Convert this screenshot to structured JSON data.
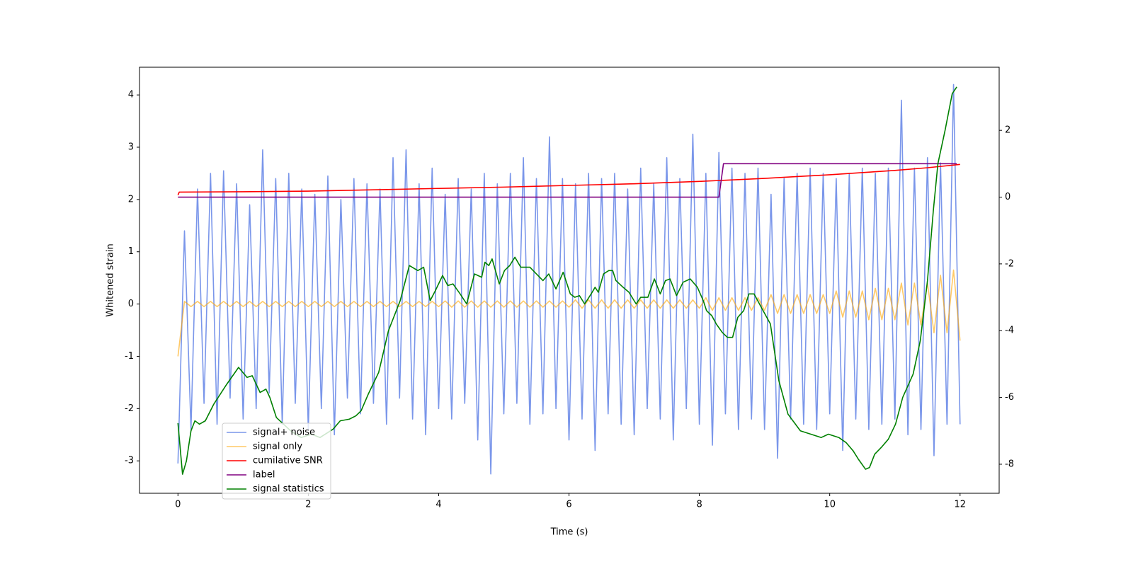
{
  "chart_data": {
    "type": "line",
    "xlabel": "Time (s)",
    "ylabel": "Whitened strain",
    "xlim": [
      -0.59,
      12.6
    ],
    "ylim": [
      -3.62,
      4.53
    ],
    "y2lim": [
      -8.87,
      3.89
    ],
    "xticks": [
      0,
      2,
      4,
      6,
      8,
      10,
      12
    ],
    "yticks": [
      -3,
      -2,
      -1,
      0,
      1,
      2,
      3,
      4
    ],
    "y2ticks": [
      -8,
      -6,
      -4,
      -2,
      0,
      2
    ],
    "legend": "lower left",
    "series": [
      {
        "name": "signal+ noise",
        "color": "#4169e1",
        "x": [
          0,
          0.1,
          0.2,
          0.3,
          0.4,
          0.5,
          0.6,
          0.7,
          0.8,
          0.9,
          1,
          1.1,
          1.2,
          1.3,
          1.4,
          1.5,
          1.6,
          1.7,
          1.8,
          1.9,
          2,
          2.1,
          2.2,
          2.3,
          2.4,
          2.5,
          2.6,
          2.7,
          2.8,
          2.9,
          3,
          3.1,
          3.2,
          3.3,
          3.4,
          3.5,
          3.6,
          3.7,
          3.8,
          3.9,
          4,
          4.1,
          4.2,
          4.3,
          4.4,
          4.5,
          4.6,
          4.7,
          4.8,
          4.9,
          5,
          5.1,
          5.2,
          5.3,
          5.4,
          5.5,
          5.6,
          5.7,
          5.8,
          5.9,
          6,
          6.1,
          6.2,
          6.3,
          6.4,
          6.5,
          6.6,
          6.7,
          6.8,
          6.9,
          7,
          7.1,
          7.2,
          7.3,
          7.4,
          7.5,
          7.6,
          7.7,
          7.8,
          7.9,
          8,
          8.1,
          8.2,
          8.3,
          8.4,
          8.5,
          8.6,
          8.7,
          8.8,
          8.9,
          9,
          9.1,
          9.2,
          9.3,
          9.4,
          9.5,
          9.6,
          9.7,
          9.8,
          9.9,
          10,
          10.1,
          10.2,
          10.3,
          10.4,
          10.5,
          10.6,
          10.7,
          10.8,
          10.9,
          11,
          11.1,
          11.2,
          11.3,
          11.4,
          11.5,
          11.6,
          11.7,
          11.8,
          11.9,
          12
        ],
        "values": [
          -3.05,
          1.4,
          -2.4,
          2.2,
          -1.9,
          2.5,
          -2.3,
          2.55,
          -1.8,
          2.3,
          -2.2,
          1.9,
          -2.0,
          2.95,
          -1.7,
          2.4,
          -2.3,
          2.5,
          -1.9,
          2.2,
          -2.4,
          2.1,
          -2.0,
          2.45,
          -2.5,
          2.0,
          -1.8,
          2.4,
          -2.1,
          2.3,
          -1.9,
          2.2,
          -2.3,
          2.8,
          -1.8,
          2.95,
          -2.2,
          2.3,
          -2.5,
          2.6,
          -2.0,
          2.1,
          -2.2,
          2.4,
          -1.9,
          2.2,
          -2.6,
          2.5,
          -3.25,
          2.3,
          -2.1,
          2.5,
          -1.9,
          2.8,
          -2.3,
          2.4,
          -2.1,
          3.2,
          -2.0,
          2.4,
          -2.6,
          2.3,
          -2.2,
          2.5,
          -2.8,
          2.4,
          -2.1,
          2.5,
          -2.3,
          2.2,
          -2.5,
          2.6,
          -2.0,
          2.3,
          -2.2,
          2.8,
          -2.6,
          2.4,
          -2.0,
          3.25,
          -2.3,
          2.5,
          -2.7,
          2.9,
          -2.1,
          2.6,
          -2.4,
          2.5,
          -2.2,
          2.6,
          -2.4,
          2.1,
          -2.95,
          2.4,
          -2.2,
          2.5,
          -2.3,
          2.6,
          -2.4,
          2.5,
          -2.1,
          2.4,
          -2.8,
          2.5,
          -2.2,
          2.6,
          -2.4,
          2.5,
          -2.3,
          2.6,
          -2.2,
          3.9,
          -2.5,
          2.6,
          -2.4,
          2.8,
          -2.9,
          2.7,
          -2.3,
          4.2,
          -2.3
        ]
      },
      {
        "name": "signal only",
        "color": "#ffa500",
        "x": [
          0,
          0.1,
          0.2,
          0.3,
          0.4,
          0.5,
          0.6,
          0.7,
          0.8,
          0.9,
          1,
          1.1,
          1.2,
          1.3,
          1.4,
          1.5,
          1.6,
          1.7,
          1.8,
          1.9,
          2,
          2.1,
          2.2,
          2.3,
          2.4,
          2.5,
          2.6,
          2.7,
          2.8,
          2.9,
          3,
          3.1,
          3.2,
          3.3,
          3.4,
          3.5,
          3.6,
          3.7,
          3.8,
          3.9,
          4,
          4.1,
          4.2,
          4.3,
          4.4,
          4.5,
          4.6,
          4.7,
          4.8,
          4.9,
          5,
          5.1,
          5.2,
          5.3,
          5.4,
          5.5,
          5.6,
          5.7,
          5.8,
          5.9,
          6,
          6.1,
          6.2,
          6.3,
          6.4,
          6.5,
          6.6,
          6.7,
          6.8,
          6.9,
          7,
          7.1,
          7.2,
          7.3,
          7.4,
          7.5,
          7.6,
          7.7,
          7.8,
          7.9,
          8,
          8.1,
          8.2,
          8.3,
          8.4,
          8.5,
          8.6,
          8.7,
          8.8,
          8.9,
          9,
          9.1,
          9.2,
          9.3,
          9.4,
          9.5,
          9.6,
          9.7,
          9.8,
          9.9,
          10,
          10.1,
          10.2,
          10.3,
          10.4,
          10.5,
          10.6,
          10.7,
          10.8,
          10.9,
          11,
          11.1,
          11.2,
          11.3,
          11.4,
          11.5,
          11.6,
          11.7,
          11.8,
          11.9,
          12
        ],
        "values": [
          -1.0,
          0.05,
          -0.05,
          0.05,
          -0.05,
          0.05,
          -0.05,
          0.05,
          -0.05,
          0.05,
          -0.05,
          0.05,
          -0.05,
          0.05,
          -0.05,
          0.05,
          -0.05,
          0.05,
          -0.05,
          0.05,
          -0.05,
          0.05,
          -0.05,
          0.05,
          -0.05,
          0.05,
          -0.05,
          0.05,
          -0.05,
          0.05,
          -0.05,
          0.05,
          -0.05,
          0.05,
          -0.05,
          0.05,
          -0.05,
          0.05,
          -0.05,
          0.05,
          -0.05,
          0.06,
          -0.06,
          0.06,
          -0.06,
          0.06,
          -0.06,
          0.06,
          -0.06,
          0.06,
          -0.06,
          0.06,
          -0.06,
          0.06,
          -0.06,
          0.06,
          -0.06,
          0.06,
          -0.06,
          0.06,
          -0.06,
          0.08,
          -0.08,
          0.08,
          -0.08,
          0.08,
          -0.08,
          0.08,
          -0.08,
          0.08,
          -0.08,
          0.08,
          -0.08,
          0.08,
          -0.08,
          0.08,
          -0.08,
          0.08,
          -0.08,
          0.08,
          -0.08,
          0.12,
          -0.12,
          0.12,
          -0.12,
          0.12,
          -0.12,
          0.12,
          -0.12,
          0.12,
          -0.12,
          0.18,
          -0.18,
          0.18,
          -0.18,
          0.18,
          -0.18,
          0.18,
          -0.18,
          0.18,
          -0.18,
          0.25,
          -0.25,
          0.25,
          -0.25,
          0.25,
          -0.3,
          0.3,
          -0.3,
          0.3,
          -0.3,
          0.4,
          -0.4,
          0.4,
          -0.4,
          0.4,
          -0.55,
          0.55,
          -0.55,
          0.65,
          -0.7
        ]
      },
      {
        "name": "cumilative SNR",
        "color": "#ff0000",
        "axis": "y2",
        "x": [
          0,
          0.02,
          1,
          2,
          3,
          4,
          5,
          6,
          7,
          8,
          9,
          10,
          11,
          11.5,
          12
        ],
        "values": [
          0.06,
          0.15,
          0.16,
          0.18,
          0.22,
          0.26,
          0.3,
          0.35,
          0.4,
          0.47,
          0.56,
          0.67,
          0.8,
          0.88,
          0.98
        ]
      },
      {
        "name": "label",
        "color": "#800080",
        "axis": "y2",
        "x": [
          0,
          8.3,
          8.37,
          11.95
        ],
        "values": [
          0,
          0,
          1,
          1
        ]
      },
      {
        "name": "signal statistics",
        "color": "#008000",
        "axis": "y2",
        "x": [
          0,
          0.07,
          0.13,
          0.2,
          0.26,
          0.33,
          0.42,
          0.55,
          0.75,
          0.93,
          1.06,
          1.14,
          1.26,
          1.35,
          1.41,
          1.51,
          1.73,
          1.89,
          2.05,
          2.18,
          2.38,
          2.49,
          2.63,
          2.73,
          2.81,
          2.92,
          3.08,
          3.23,
          3.41,
          3.55,
          3.68,
          3.77,
          3.87,
          3.95,
          4.06,
          4.14,
          4.22,
          4.33,
          4.43,
          4.55,
          4.66,
          4.71,
          4.77,
          4.82,
          4.93,
          5.01,
          5.09,
          5.17,
          5.26,
          5.4,
          5.5,
          5.6,
          5.69,
          5.8,
          5.91,
          6.02,
          6.09,
          6.16,
          6.24,
          6.34,
          6.4,
          6.45,
          6.53,
          6.61,
          6.67,
          6.72,
          6.83,
          6.92,
          7.03,
          7.1,
          7.21,
          7.31,
          7.4,
          7.48,
          7.55,
          7.65,
          7.75,
          7.86,
          7.97,
          8.06,
          8.11,
          8.19,
          8.26,
          8.35,
          8.43,
          8.51,
          8.59,
          8.68,
          8.76,
          8.84,
          8.95,
          9.09,
          9.22,
          9.36,
          9.55,
          9.71,
          9.87,
          9.98,
          10.14,
          10.25,
          10.36,
          10.44,
          10.55,
          10.61,
          10.69,
          10.79,
          10.9,
          11.01,
          11.12,
          11.28,
          11.39,
          11.5,
          11.59,
          11.66,
          11.77,
          11.88,
          11.95
        ],
        "values": [
          -6.77,
          -8.3,
          -7.9,
          -7.0,
          -6.7,
          -6.8,
          -6.7,
          -6.2,
          -5.6,
          -5.1,
          -5.4,
          -5.35,
          -5.85,
          -5.75,
          -6.0,
          -6.6,
          -7.0,
          -7.2,
          -7.1,
          -7.2,
          -6.95,
          -6.7,
          -6.65,
          -6.55,
          -6.4,
          -5.9,
          -5.25,
          -4.0,
          -3.1,
          -2.05,
          -2.2,
          -2.1,
          -3.1,
          -2.8,
          -2.35,
          -2.65,
          -2.6,
          -2.9,
          -3.2,
          -2.3,
          -2.4,
          -1.95,
          -2.05,
          -1.85,
          -2.6,
          -2.2,
          -2.05,
          -1.8,
          -2.1,
          -2.1,
          -2.3,
          -2.5,
          -2.3,
          -2.75,
          -2.25,
          -2.9,
          -3.0,
          -2.95,
          -3.2,
          -2.9,
          -2.7,
          -2.85,
          -2.3,
          -2.2,
          -2.2,
          -2.5,
          -2.7,
          -2.85,
          -3.2,
          -3.0,
          -3.0,
          -2.45,
          -2.9,
          -2.5,
          -2.45,
          -2.95,
          -2.55,
          -2.45,
          -2.7,
          -3.1,
          -3.4,
          -3.55,
          -3.8,
          -4.05,
          -4.2,
          -4.2,
          -3.6,
          -3.4,
          -2.9,
          -2.9,
          -3.3,
          -3.8,
          -5.5,
          -6.5,
          -7.0,
          -7.1,
          -7.2,
          -7.1,
          -7.2,
          -7.35,
          -7.6,
          -7.85,
          -8.15,
          -8.1,
          -7.7,
          -7.5,
          -7.25,
          -6.8,
          -6.0,
          -5.3,
          -4.3,
          -2.5,
          -0.4,
          1.0,
          2.0,
          3.1,
          3.3
        ]
      }
    ]
  }
}
